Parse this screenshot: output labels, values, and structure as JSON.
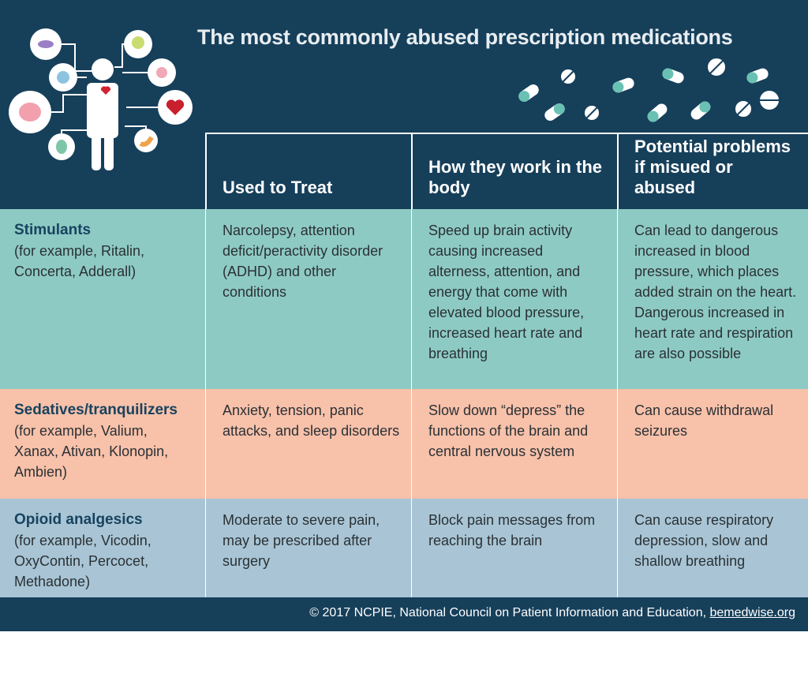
{
  "title": "The most commonly abused prescription medications",
  "table": {
    "headers": [
      "Used to Treat",
      "How they work in the body",
      "Potential problems if misued or abused"
    ],
    "rows": [
      {
        "name": "Stimulants",
        "example": "(for example, Ritalin, Concerta, Adderall)",
        "cells": [
          "Narcolepsy, attention deficit/peractivity disorder (ADHD) and other conditions",
          "Speed up brain activity causing increased alterness, attention, and energy that come with elevated blood pressure, increased heart rate and breathing",
          "Can lead to dangerous increased in blood pressure, which places added strain on the heart. Dangerous increased in heart rate and respiration are also possible"
        ]
      },
      {
        "name": "Sedatives/tranquilizers",
        "example": "(for example, Valium, Xanax, Ativan, Klonopin, Ambien)",
        "cells": [
          "Anxiety, tension, panic attacks, and sleep disorders",
          "Slow down “depress” the functions of the brain and central nervous system",
          "Can cause withdrawal seizures"
        ]
      },
      {
        "name": "Opioid analgesics",
        "example": "(for example, Vicodin, OxyContin, Percocet, Methadone)",
        "cells": [
          "Moderate to severe pain, may be prescribed after surgery",
          "Block pain messages from reaching the brain",
          "Can cause respiratory depression, slow and shallow breathing"
        ]
      }
    ]
  },
  "footer": {
    "text": "© 2017 NCPIE, National Council on Patient Information and Education,",
    "link": "bemedwise.org"
  }
}
